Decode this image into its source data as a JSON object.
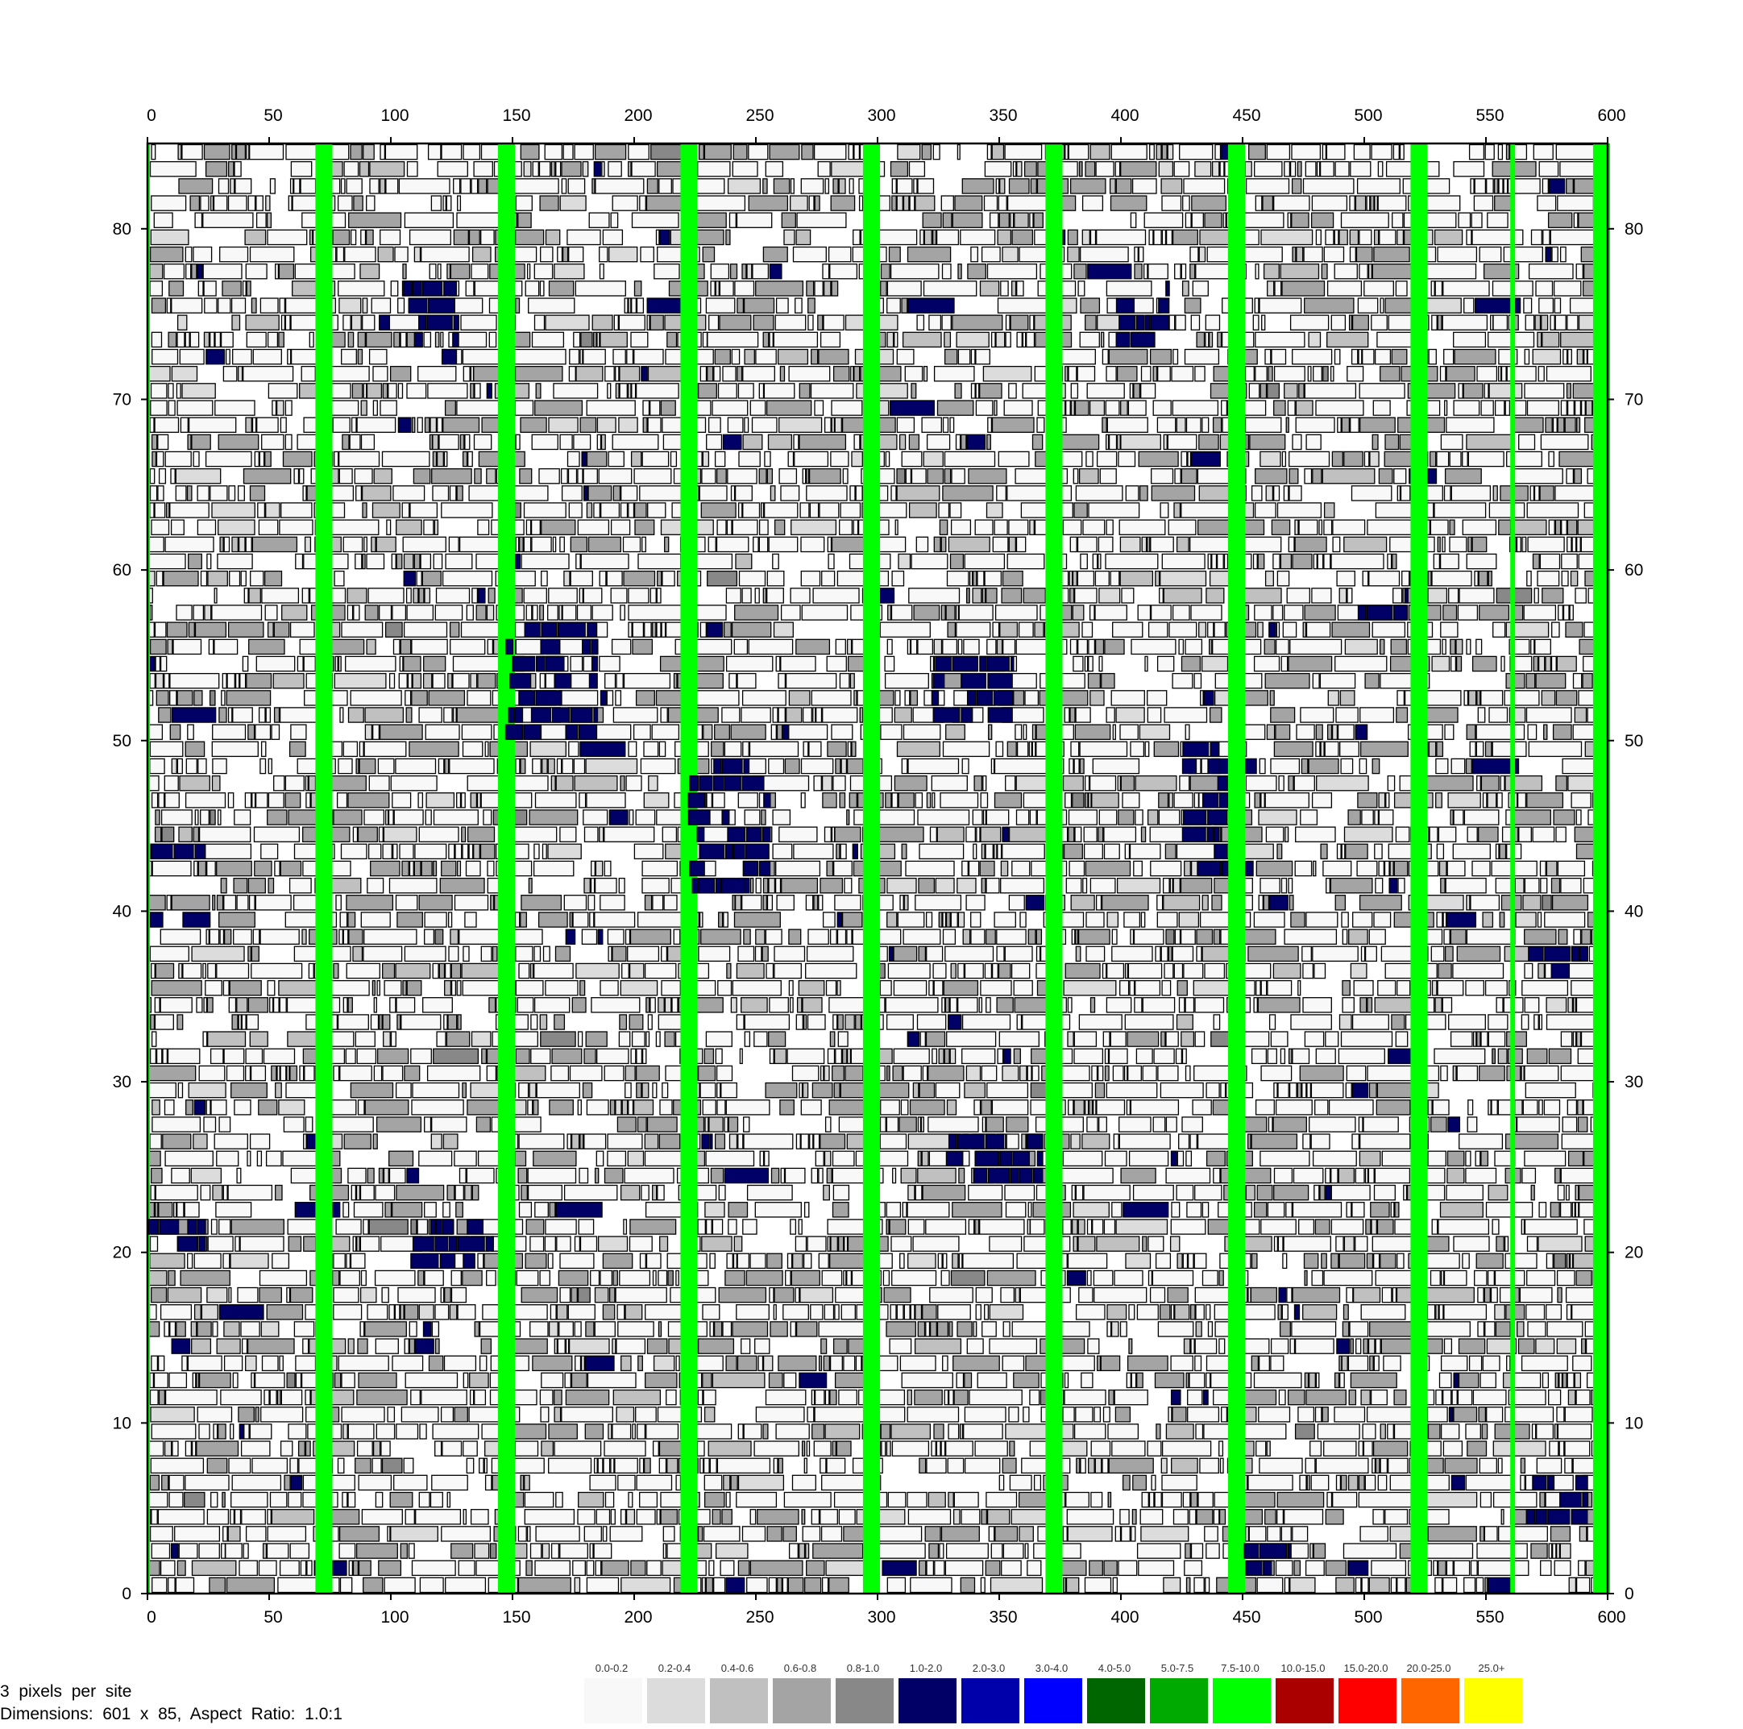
{
  "chart_data": {
    "type": "heatmap",
    "x_range": [
      0,
      600
    ],
    "y_range": [
      0,
      85
    ],
    "x_ticks": [
      0,
      50,
      100,
      150,
      200,
      250,
      300,
      350,
      400,
      450,
      500,
      550,
      600
    ],
    "x_tick_labels": [
      "0",
      "50",
      "100",
      "150",
      "200",
      "250",
      "300",
      "350",
      "400",
      "450",
      "500",
      "550",
      "600"
    ],
    "y_ticks": [
      0,
      10,
      20,
      30,
      40,
      50,
      60,
      70,
      80
    ],
    "y_tick_labels": [
      "0",
      "10",
      "20",
      "30",
      "40",
      "50",
      "60",
      "70",
      "80"
    ],
    "grid": false,
    "legend_position": "bottom",
    "legend": [
      {
        "label": "0.0-0.2",
        "color": "#f8f8f8"
      },
      {
        "label": "0.2-0.4",
        "color": "#dcdcdc"
      },
      {
        "label": "0.4-0.6",
        "color": "#c0c0c0"
      },
      {
        "label": "0.6-0.8",
        "color": "#a4a4a4"
      },
      {
        "label": "0.8-1.0",
        "color": "#888888"
      },
      {
        "label": "1.0-2.0",
        "color": "#000066"
      },
      {
        "label": "2.0-3.0",
        "color": "#0000aa"
      },
      {
        "label": "3.0-4.0",
        "color": "#0000ff"
      },
      {
        "label": "4.0-5.0",
        "color": "#006600"
      },
      {
        "label": "5.0-7.5",
        "color": "#00aa00"
      },
      {
        "label": "7.5-10.0",
        "color": "#00ff00"
      },
      {
        "label": "10.0-15.0",
        "color": "#aa0000"
      },
      {
        "label": "15.0-20.0",
        "color": "#ff0000"
      },
      {
        "label": "20.0-25.0",
        "color": "#ff6600"
      },
      {
        "label": "25.0+",
        "color": "#ffff00"
      }
    ],
    "high_value_columns": {
      "value_range": "7.5-10.0",
      "x_spans": [
        [
          0,
          1
        ],
        [
          69,
          76
        ],
        [
          144,
          151
        ],
        [
          219,
          226
        ],
        [
          294,
          301
        ],
        [
          369,
          376
        ],
        [
          444,
          451
        ],
        [
          519,
          526
        ],
        [
          560,
          562
        ],
        [
          594,
          601
        ]
      ]
    },
    "high_value_clusters": {
      "value_range": "1.0-2.0",
      "regions": [
        {
          "x": [
            95,
            128
          ],
          "y": [
            72,
            77
          ]
        },
        {
          "x": [
            398,
            420
          ],
          "y": [
            73,
            77
          ]
        },
        {
          "x": [
            147,
            185
          ],
          "y": [
            50,
            57
          ]
        },
        {
          "x": [
            222,
            256
          ],
          "y": [
            41,
            49
          ]
        },
        {
          "x": [
            322,
            356
          ],
          "y": [
            51,
            55
          ]
        },
        {
          "x": [
            424,
            444
          ],
          "y": [
            42,
            50
          ]
        },
        {
          "x": [
            0,
            24
          ],
          "y": [
            43,
            44
          ]
        },
        {
          "x": [
            0,
            24
          ],
          "y": [
            20,
            22
          ]
        },
        {
          "x": [
            108,
            144
          ],
          "y": [
            19,
            22
          ]
        },
        {
          "x": [
            328,
            368
          ],
          "y": [
            24,
            27
          ]
        },
        {
          "x": [
            450,
            470
          ],
          "y": [
            1,
            3
          ]
        },
        {
          "x": [
            566,
            592
          ],
          "y": [
            4,
            7
          ]
        },
        {
          "x": [
            566,
            592
          ],
          "y": [
            36,
            38
          ]
        },
        {
          "x": [
            496,
            518
          ],
          "y": [
            57,
            59
          ]
        }
      ]
    },
    "block_fill_mix": {
      "0.0-0.2": 0.6,
      "0.2-0.4": 0.07,
      "0.4-0.6": 0.08,
      "0.6-0.8": 0.22,
      "0.8-1.0": 0.01,
      "1.0-2.0": 0.02
    }
  },
  "footer": {
    "line1": "3  pixels  per  site",
    "line2": "Dimensions:  601  x  85,  Aspect  Ratio:  1.0:1"
  }
}
